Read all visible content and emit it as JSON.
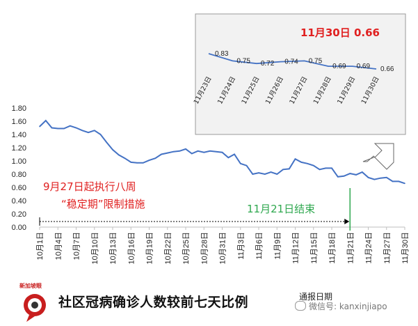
{
  "chart_data": [
    {
      "type": "line",
      "title": "社区冠病确诊人数较前七天比例",
      "xlabel": "通报日期",
      "ylabel": "",
      "ylim": [
        0,
        1.8
      ],
      "yticks": [
        "0.00",
        "0.20",
        "0.40",
        "0.60",
        "0.80",
        "1.00",
        "1.20",
        "1.40",
        "1.60",
        "1.80"
      ],
      "xticks": [
        "10月1日",
        "10月4日",
        "10月7日",
        "10月10日",
        "10月13日",
        "10月16日",
        "10月19日",
        "10月22日",
        "10月25日",
        "10月28日",
        "10月31日",
        "11月3日",
        "11月6日",
        "11月9日",
        "11月12日",
        "11月15日",
        "11月18日",
        "11月21日",
        "11月24日",
        "11月27日",
        "11月30日"
      ],
      "series": [
        {
          "color": "#4472c4",
          "x": [
            "10月1日",
            "10月2日",
            "10月3日",
            "10月4日",
            "10月5日",
            "10月6日",
            "10月7日",
            "10月8日",
            "10月9日",
            "10月10日",
            "10月11日",
            "10月12日",
            "10月13日",
            "10月14日",
            "10月15日",
            "10月16日",
            "10月17日",
            "10月18日",
            "10月19日",
            "10月20日",
            "10月21日",
            "10月22日",
            "10月23日",
            "10月24日",
            "10月25日",
            "10月26日",
            "10月27日",
            "10月28日",
            "10月29日",
            "10月30日",
            "10月31日",
            "11月1日",
            "11月2日",
            "11月3日",
            "11月4日",
            "11月5日",
            "11月6日",
            "11月7日",
            "11月8日",
            "11月9日",
            "11月10日",
            "11月11日",
            "11月12日",
            "11月13日",
            "11月14日",
            "11月15日",
            "11月16日",
            "11月17日",
            "11月18日",
            "11月19日",
            "11月20日",
            "11月21日",
            "11月22日",
            "11月23日",
            "11月24日",
            "11月25日",
            "11月26日",
            "11月27日",
            "11月28日",
            "11月29日",
            "11月30日"
          ],
          "values": [
            1.52,
            1.61,
            1.5,
            1.49,
            1.49,
            1.53,
            1.5,
            1.46,
            1.43,
            1.46,
            1.4,
            1.28,
            1.17,
            1.09,
            1.04,
            0.98,
            0.97,
            0.97,
            1.01,
            1.04,
            1.1,
            1.12,
            1.14,
            1.15,
            1.18,
            1.11,
            1.15,
            1.13,
            1.15,
            1.14,
            1.13,
            1.05,
            1.1,
            0.96,
            0.93,
            0.8,
            0.82,
            0.8,
            0.83,
            0.8,
            0.87,
            0.88,
            1.03,
            0.98,
            0.96,
            0.93,
            0.87,
            0.89,
            0.89,
            0.76,
            0.77,
            0.81,
            0.79,
            0.83,
            0.75,
            0.72,
            0.74,
            0.75,
            0.69,
            0.69,
            0.66
          ]
        }
      ],
      "annotations": {
        "policy_line1": "9月27日起执行八周",
        "policy_line2": "“稳定期”限制措施",
        "end_label": "11月21日结束",
        "end_date": "11月21日"
      },
      "grid": false,
      "legend": "none"
    },
    {
      "type": "line",
      "highlight": "11月30日 0.66",
      "x": [
        "11月23日",
        "11月24日",
        "11月25日",
        "11月26日",
        "11月27日",
        "11月28日",
        "11月29日",
        "11月30日"
      ],
      "values": [
        0.83,
        0.75,
        0.72,
        0.74,
        0.75,
        0.69,
        0.69,
        0.66
      ],
      "data_labels": [
        "0.83",
        "0.75",
        "0.72",
        "0.74",
        "0.75",
        "0.69",
        "0.69",
        "0.66"
      ],
      "highlight_color": "#e02020",
      "line_color": "#4472c4"
    }
  ],
  "footer": {
    "logo_text": "新加坡眼",
    "wechat_label": "微信号: kanxinjiapo"
  }
}
